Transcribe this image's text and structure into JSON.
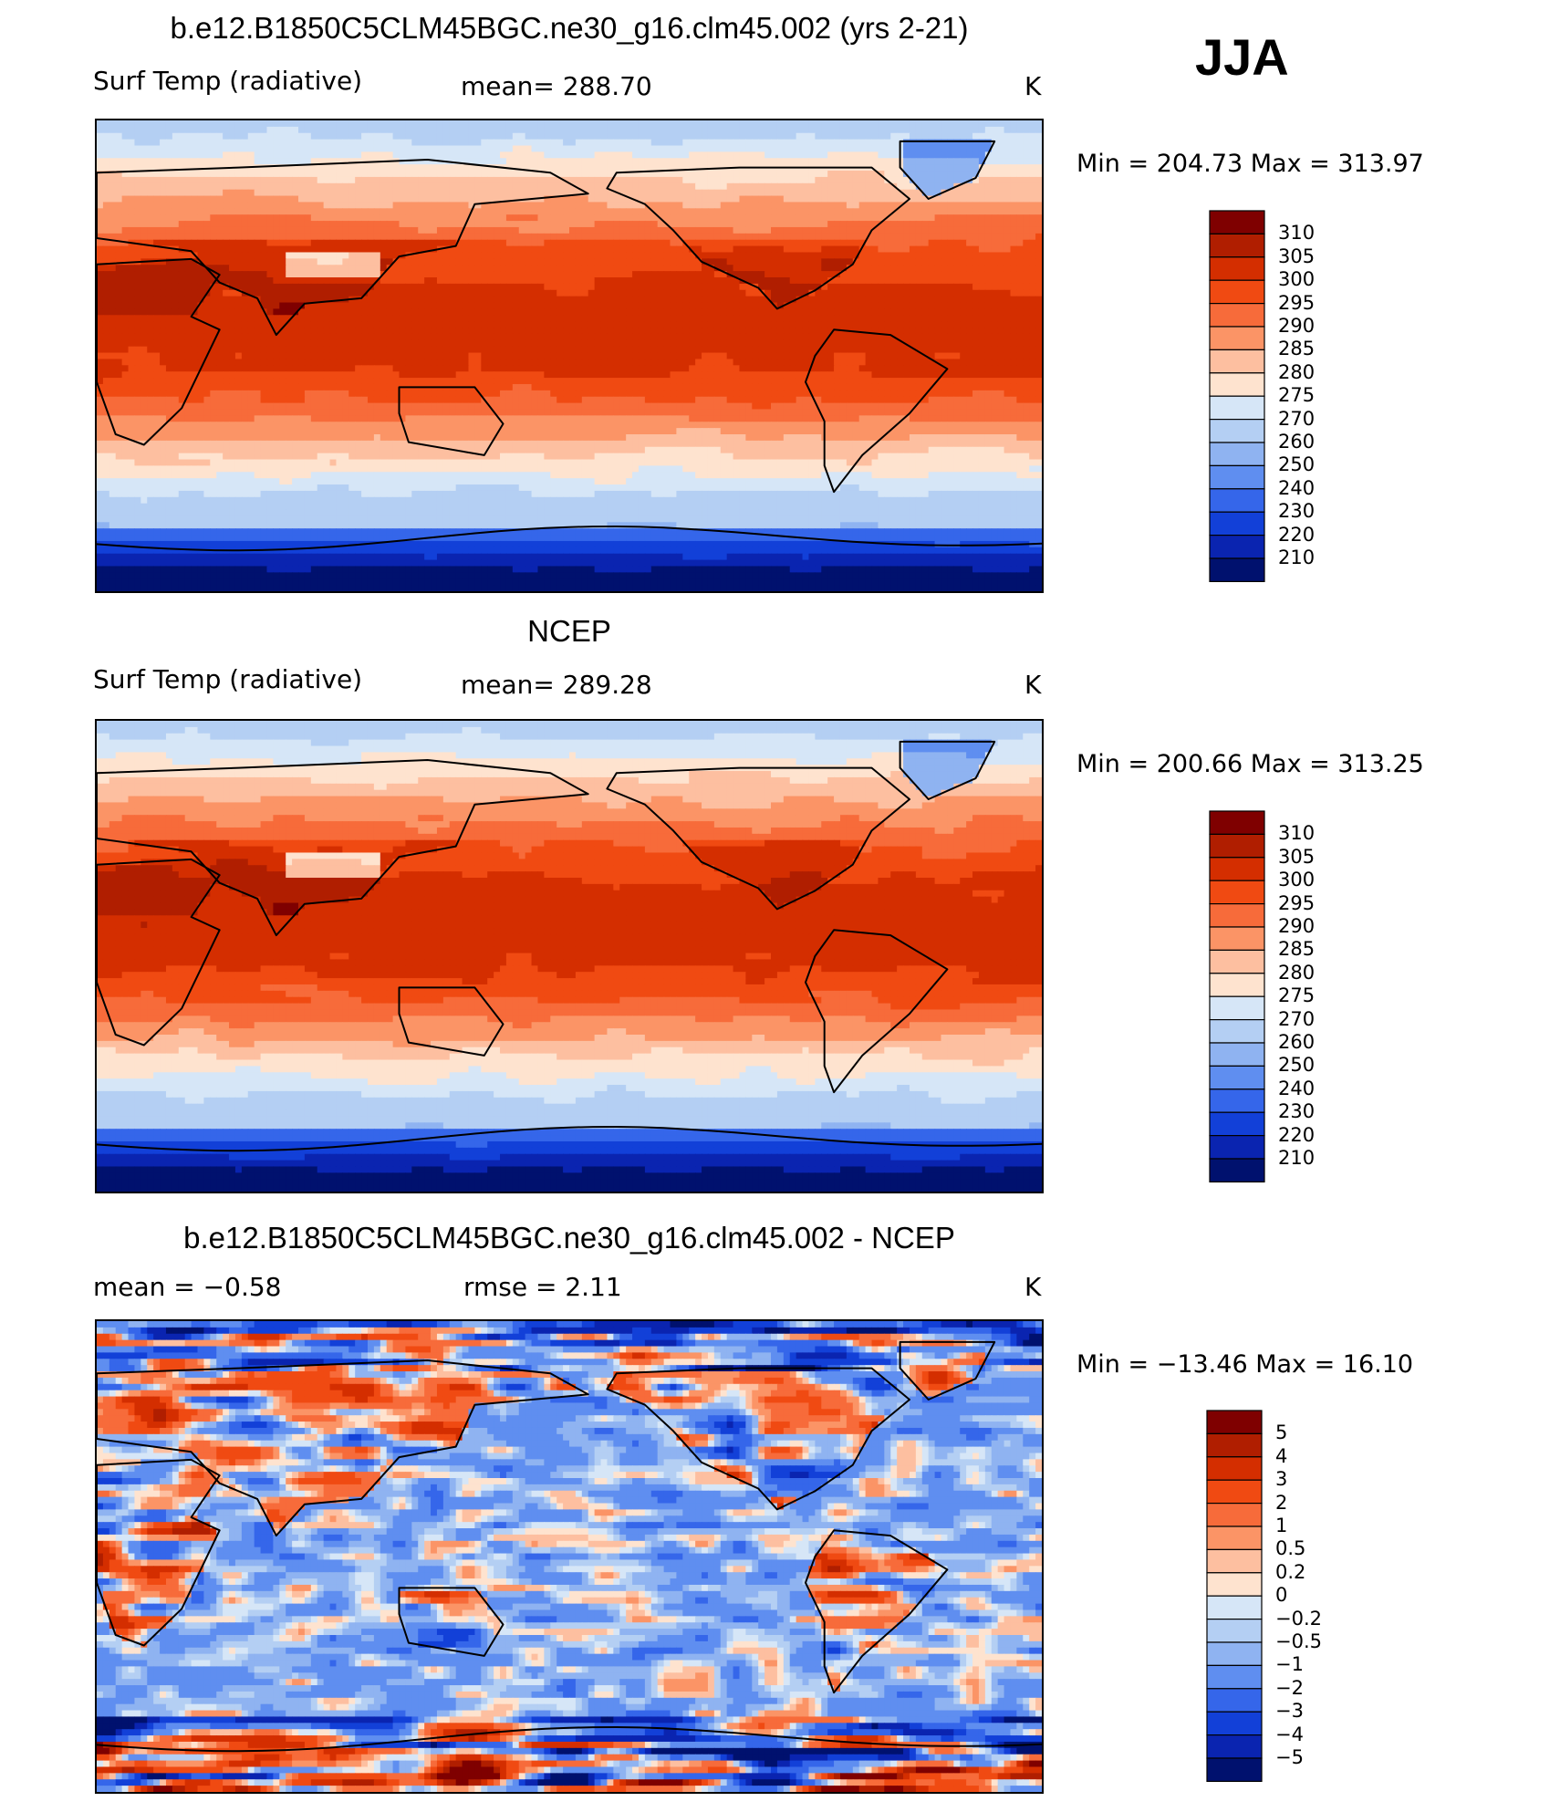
{
  "season": "JJA",
  "panels": [
    {
      "id": "model",
      "title": "b.e12.B1850C5CLM45BGC.ne30_g16.clm45.002 (yrs 2-21)",
      "left_label": "Surf Temp (radiative)",
      "center_label": "mean=  288.70",
      "units": "K",
      "minmax": "Min  =  204.73  Max  =  313.97",
      "colorbar": {
        "levels": [
          "310",
          "305",
          "300",
          "295",
          "290",
          "285",
          "280",
          "275",
          "270",
          "260",
          "250",
          "240",
          "230",
          "220",
          "210"
        ],
        "colors": [
          "#7f0000",
          "#b01e00",
          "#d42e00",
          "#f04a12",
          "#f76b3a",
          "#fb9466",
          "#fdbfa0",
          "#fee3cf",
          "#d6e6f7",
          "#b4cff3",
          "#8fb3f1",
          "#5f8ef0",
          "#3566ea",
          "#1240d8",
          "#0a24b0",
          "#00116e"
        ]
      },
      "chart_data": {
        "type": "heatmap",
        "variable": "Surf Temp (radiative)",
        "units": "K",
        "mean": 288.7,
        "min": 204.73,
        "max": 313.97,
        "contour_levels": [
          210,
          220,
          230,
          240,
          250,
          260,
          270,
          275,
          280,
          285,
          290,
          295,
          300,
          305,
          310
        ]
      }
    },
    {
      "id": "obs",
      "title": "NCEP",
      "left_label": "Surf Temp (radiative)",
      "center_label": "mean=  289.28",
      "units": "K",
      "minmax": "Min  =  200.66  Max  =  313.25",
      "colorbar": {
        "levels": [
          "310",
          "305",
          "300",
          "295",
          "290",
          "285",
          "280",
          "275",
          "270",
          "260",
          "250",
          "240",
          "230",
          "220",
          "210"
        ],
        "colors": [
          "#7f0000",
          "#b01e00",
          "#d42e00",
          "#f04a12",
          "#f76b3a",
          "#fb9466",
          "#fdbfa0",
          "#fee3cf",
          "#d6e6f7",
          "#b4cff3",
          "#8fb3f1",
          "#5f8ef0",
          "#3566ea",
          "#1240d8",
          "#0a24b0",
          "#00116e"
        ]
      },
      "chart_data": {
        "type": "heatmap",
        "variable": "Surf Temp (radiative)",
        "units": "K",
        "mean": 289.28,
        "min": 200.66,
        "max": 313.25,
        "contour_levels": [
          210,
          220,
          230,
          240,
          250,
          260,
          270,
          275,
          280,
          285,
          290,
          295,
          300,
          305,
          310
        ]
      }
    },
    {
      "id": "diff",
      "title": "b.e12.B1850C5CLM45BGC.ne30_g16.clm45.002 - NCEP",
      "left_label": "mean =    −0.58",
      "center_label": "rmse =     2.11",
      "units": "K",
      "minmax": "Min  =  −13.46  Max  =    16.10",
      "colorbar": {
        "levels": [
          "5",
          "4",
          "3",
          "2",
          "1",
          "0.5",
          "0.2",
          "0",
          "−0.2",
          "−0.5",
          "−1",
          "−2",
          "−3",
          "−4",
          "−5"
        ],
        "colors": [
          "#7f0000",
          "#b01e00",
          "#d42e00",
          "#f04a12",
          "#f76b3a",
          "#fb9466",
          "#fdbfa0",
          "#fee3cf",
          "#d6e6f7",
          "#b4cff3",
          "#8fb3f1",
          "#5f8ef0",
          "#3566ea",
          "#1240d8",
          "#0a24b0",
          "#00116e"
        ]
      },
      "chart_data": {
        "type": "heatmap",
        "units": "K",
        "mean": -0.58,
        "rmse": 2.11,
        "min": -13.46,
        "max": 16.1,
        "contour_levels": [
          -5,
          -4,
          -3,
          -2,
          -1,
          -0.5,
          -0.2,
          0,
          0.2,
          0.5,
          1,
          2,
          3,
          4,
          5
        ]
      }
    }
  ]
}
